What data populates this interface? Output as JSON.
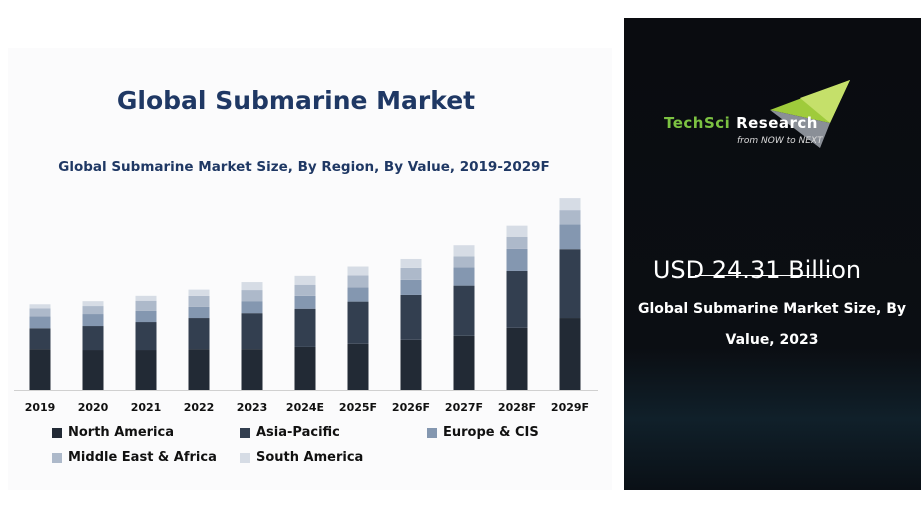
{
  "header": {
    "title": "Global Submarine Market"
  },
  "chart_data": {
    "type": "bar",
    "stacked": true,
    "title": "Global Submarine Market Size, By Region, By Value, 2019-2029F",
    "xlabel": "",
    "ylabel": "",
    "categories": [
      "2019",
      "2020",
      "2021",
      "2022",
      "2023",
      "2024E",
      "2025F",
      "2026F",
      "2027F",
      "2028F",
      "2029F"
    ],
    "ylim": [
      0,
      43
    ],
    "grid": false,
    "legend_position": "bottom",
    "series": [
      {
        "name": "North America",
        "color": "#222a35",
        "values": [
          9.2,
          9.0,
          9.0,
          9.2,
          9.2,
          9.7,
          10.4,
          11.3,
          12.2,
          14.0,
          16.2
        ]
      },
      {
        "name": "Asia-Pacific",
        "color": "#333f50",
        "values": [
          4.7,
          5.4,
          6.3,
          7.0,
          8.1,
          8.6,
          9.5,
          10.1,
          11.3,
          12.8,
          15.5
        ]
      },
      {
        "name": "Europe & CIS",
        "color": "#8497b0",
        "values": [
          2.7,
          2.7,
          2.5,
          2.5,
          2.7,
          2.9,
          3.2,
          3.4,
          4.1,
          5.0,
          5.6
        ]
      },
      {
        "name": "Middle East & Africa",
        "color": "#adb9ca",
        "values": [
          1.8,
          1.8,
          2.3,
          2.5,
          2.5,
          2.5,
          2.7,
          2.7,
          2.5,
          2.7,
          3.2
        ]
      },
      {
        "name": "South America",
        "color": "#d6dce5",
        "values": [
          0.9,
          1.1,
          1.1,
          1.4,
          1.8,
          2.0,
          2.0,
          2.0,
          2.5,
          2.5,
          2.7
        ]
      }
    ]
  },
  "panel": {
    "brand_part1": "TechSci",
    "brand_part2": "Research",
    "tagline": "from NOW to NEXT",
    "value": "USD 24.31 Billion",
    "caption": "Global Submarine Market Size, By Value, 2023"
  }
}
